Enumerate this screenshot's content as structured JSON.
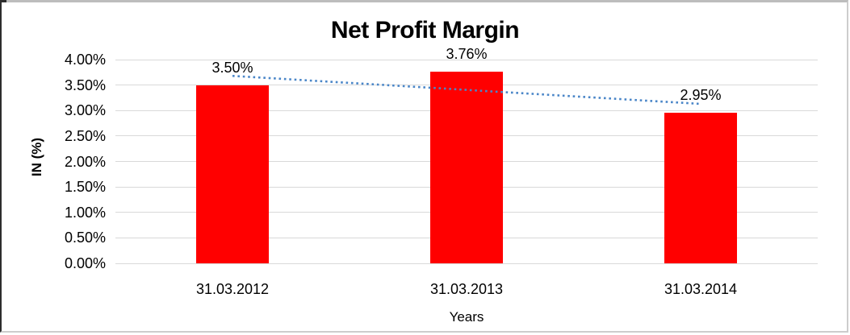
{
  "chart_data": {
    "type": "bar",
    "title": "Net Profit Margin",
    "xlabel": "Years",
    "ylabel": "IN (%)",
    "categories": [
      "31.03.2012",
      "31.03.2013",
      "31.03.2014"
    ],
    "values": [
      3.5,
      3.76,
      2.95
    ],
    "data_labels": [
      "3.50%",
      "3.76%",
      "2.95%"
    ],
    "y_ticks": [
      "4.00%",
      "3.50%",
      "3.00%",
      "2.50%",
      "2.00%",
      "1.50%",
      "1.00%",
      "0.50%",
      "0.00%"
    ],
    "ylim": [
      0,
      4
    ],
    "grid": "horizontal",
    "legend": "none",
    "bar_color": "#ff0000",
    "gridline_color": "#d9d9d9",
    "trendline": {
      "type": "linear",
      "style": "dotted",
      "color": "#4a86c8",
      "start_value": 3.68,
      "end_value": 3.13
    }
  }
}
